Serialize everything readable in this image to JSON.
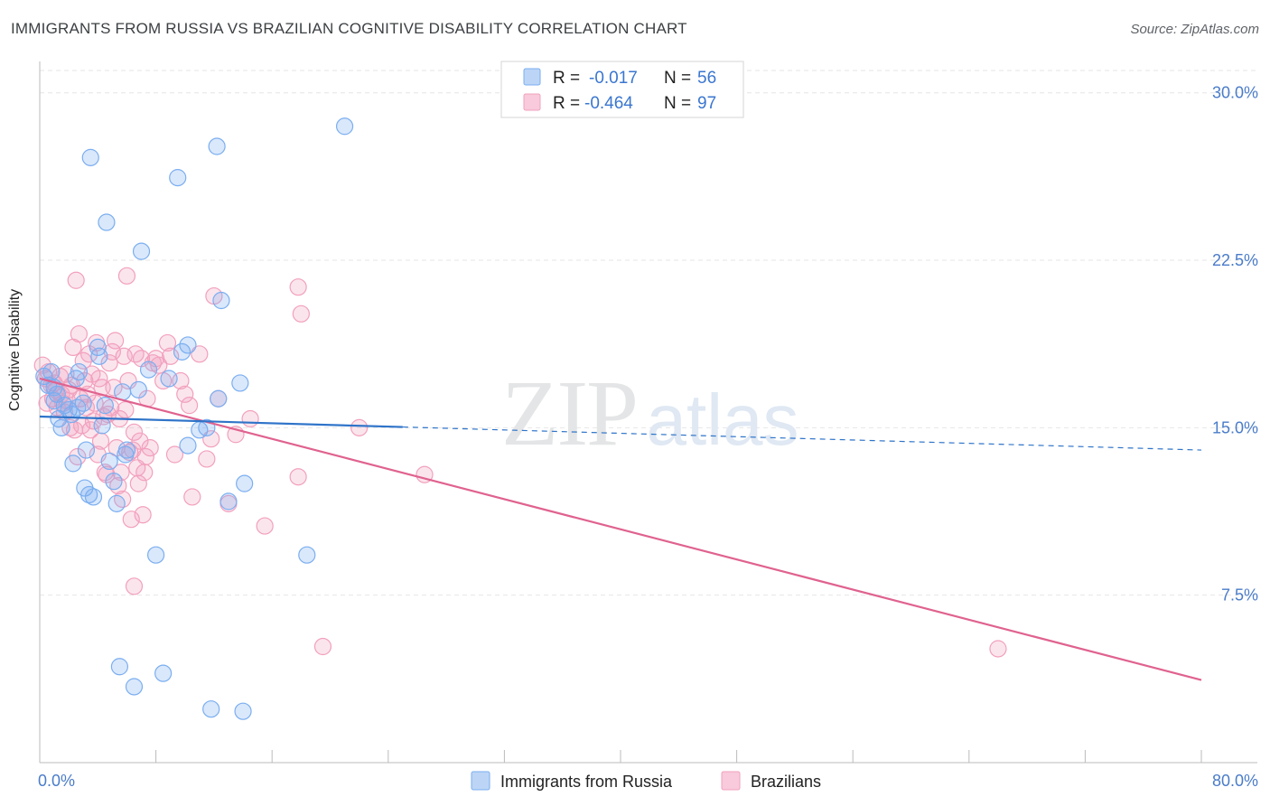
{
  "header": {
    "title": "IMMIGRANTS FROM RUSSIA VS BRAZILIAN COGNITIVE DISABILITY CORRELATION CHART",
    "source": "Source: ZipAtlas.com"
  },
  "watermark": {
    "zip": "ZIP",
    "atlas": "atlas"
  },
  "colors": {
    "russia": "#7aaef0",
    "russia_line": "#2f74c9",
    "brazil": "#f2a0bd",
    "brazil_line": "#e0628f",
    "tick_label": "#4a7cc9"
  },
  "chart_data": {
    "type": "scatter",
    "title": "IMMIGRANTS FROM RUSSIA VS BRAZILIAN COGNITIVE DISABILITY CORRELATION CHART",
    "xlabel": "",
    "ylabel": "Cognitive Disability",
    "xlim": [
      0,
      80
    ],
    "ylim": [
      0,
      31
    ],
    "x_tick_labels": [
      "0.0%",
      "80.0%"
    ],
    "y_ticks": [
      7.5,
      15.0,
      22.5,
      30.0
    ],
    "y_tick_labels": [
      "7.5%",
      "15.0%",
      "22.5%",
      "30.0%"
    ],
    "legend": [
      {
        "name": "Immigrants from Russia",
        "r_label": "R =",
        "r": "-0.017",
        "n_label": "N =",
        "n": "56"
      },
      {
        "name": "Brazilians",
        "r_label": "R =",
        "r": "-0.464",
        "n_label": "N =",
        "n": "97"
      }
    ],
    "series": [
      {
        "name": "Immigrants from Russia",
        "trend": {
          "x0": 0,
          "y0": 15.5,
          "x1": 80,
          "y1": 14.0,
          "solid_until_x": 25
        },
        "points": [
          [
            0.3,
            17.3
          ],
          [
            0.6,
            16.9
          ],
          [
            0.8,
            17.5
          ],
          [
            1.0,
            16.2
          ],
          [
            1.3,
            15.4
          ],
          [
            1.5,
            15.0
          ],
          [
            1.7,
            16.0
          ],
          [
            2.0,
            15.8
          ],
          [
            2.2,
            15.6
          ],
          [
            2.3,
            13.4
          ],
          [
            2.5,
            17.2
          ],
          [
            2.7,
            17.5
          ],
          [
            3.0,
            16.1
          ],
          [
            3.1,
            12.3
          ],
          [
            3.2,
            14.0
          ],
          [
            3.4,
            12.0
          ],
          [
            3.5,
            27.1
          ],
          [
            3.7,
            11.9
          ],
          [
            4.0,
            18.6
          ],
          [
            4.1,
            18.2
          ],
          [
            4.3,
            15.1
          ],
          [
            4.5,
            16.0
          ],
          [
            4.6,
            24.2
          ],
          [
            4.8,
            13.5
          ],
          [
            5.1,
            12.6
          ],
          [
            5.3,
            11.6
          ],
          [
            5.5,
            4.3
          ],
          [
            5.7,
            16.6
          ],
          [
            5.9,
            13.8
          ],
          [
            6.0,
            14.0
          ],
          [
            6.5,
            3.4
          ],
          [
            6.8,
            16.7
          ],
          [
            7.0,
            22.9
          ],
          [
            7.5,
            17.6
          ],
          [
            8.0,
            9.3
          ],
          [
            8.5,
            4.0
          ],
          [
            8.9,
            17.2
          ],
          [
            9.5,
            26.2
          ],
          [
            9.8,
            18.4
          ],
          [
            10.2,
            18.7
          ],
          [
            10.2,
            14.2
          ],
          [
            11.0,
            14.9
          ],
          [
            11.5,
            15.0
          ],
          [
            11.8,
            2.4
          ],
          [
            12.2,
            27.6
          ],
          [
            12.3,
            16.3
          ],
          [
            12.5,
            20.7
          ],
          [
            13.0,
            11.7
          ],
          [
            13.8,
            17.0
          ],
          [
            14.1,
            12.5
          ],
          [
            14.0,
            2.3
          ],
          [
            18.4,
            9.3
          ],
          [
            21.0,
            28.5
          ],
          [
            1.0,
            16.8
          ],
          [
            2.6,
            15.9
          ],
          [
            1.2,
            16.5
          ]
        ]
      },
      {
        "name": "Brazilians",
        "trend": {
          "x0": 0,
          "y0": 17.2,
          "x1": 80,
          "y1": 3.7
        },
        "points": [
          [
            0.2,
            17.8
          ],
          [
            0.4,
            17.2
          ],
          [
            0.5,
            16.1
          ],
          [
            0.6,
            17.5
          ],
          [
            0.8,
            16.9
          ],
          [
            0.9,
            16.3
          ],
          [
            1.0,
            17.0
          ],
          [
            1.1,
            16.7
          ],
          [
            1.2,
            15.9
          ],
          [
            1.4,
            17.3
          ],
          [
            1.5,
            16.5
          ],
          [
            1.6,
            16.1
          ],
          [
            1.7,
            15.7
          ],
          [
            1.8,
            17.4
          ],
          [
            1.9,
            16.2
          ],
          [
            2.0,
            16.7
          ],
          [
            2.1,
            15.0
          ],
          [
            2.2,
            16.9
          ],
          [
            2.3,
            18.6
          ],
          [
            2.4,
            14.9
          ],
          [
            2.5,
            21.6
          ],
          [
            2.6,
            13.7
          ],
          [
            2.7,
            19.2
          ],
          [
            2.8,
            16.3
          ],
          [
            2.9,
            15.1
          ],
          [
            3.0,
            18.0
          ],
          [
            3.1,
            17.1
          ],
          [
            3.2,
            15.9
          ],
          [
            3.3,
            16.5
          ],
          [
            3.4,
            18.3
          ],
          [
            3.5,
            14.9
          ],
          [
            3.6,
            17.4
          ],
          [
            3.7,
            15.3
          ],
          [
            3.8,
            16.1
          ],
          [
            3.9,
            18.8
          ],
          [
            4.0,
            13.8
          ],
          [
            4.1,
            17.2
          ],
          [
            4.2,
            14.4
          ],
          [
            4.3,
            16.8
          ],
          [
            4.4,
            15.5
          ],
          [
            4.5,
            13.0
          ],
          [
            4.6,
            12.9
          ],
          [
            4.7,
            15.6
          ],
          [
            4.8,
            17.9
          ],
          [
            4.9,
            15.9
          ],
          [
            5.0,
            18.4
          ],
          [
            5.1,
            16.8
          ],
          [
            5.2,
            18.9
          ],
          [
            5.3,
            14.1
          ],
          [
            5.4,
            12.4
          ],
          [
            5.5,
            15.4
          ],
          [
            5.6,
            13.0
          ],
          [
            5.7,
            11.8
          ],
          [
            5.8,
            18.2
          ],
          [
            5.9,
            15.8
          ],
          [
            6.0,
            21.8
          ],
          [
            6.1,
            17.1
          ],
          [
            6.2,
            13.9
          ],
          [
            6.3,
            10.9
          ],
          [
            6.4,
            14.0
          ],
          [
            6.5,
            14.8
          ],
          [
            6.6,
            18.3
          ],
          [
            6.7,
            13.2
          ],
          [
            6.8,
            12.5
          ],
          [
            6.9,
            14.4
          ],
          [
            7.0,
            18.1
          ],
          [
            7.1,
            11.1
          ],
          [
            7.2,
            13.0
          ],
          [
            7.3,
            13.7
          ],
          [
            7.4,
            16.3
          ],
          [
            7.6,
            14.1
          ],
          [
            7.8,
            17.9
          ],
          [
            8.0,
            18.1
          ],
          [
            8.2,
            17.8
          ],
          [
            8.5,
            17.1
          ],
          [
            8.8,
            18.8
          ],
          [
            9.0,
            18.2
          ],
          [
            9.3,
            13.8
          ],
          [
            9.7,
            17.1
          ],
          [
            10.0,
            16.5
          ],
          [
            10.3,
            16.0
          ],
          [
            10.5,
            11.9
          ],
          [
            11.0,
            18.3
          ],
          [
            11.5,
            13.6
          ],
          [
            11.8,
            14.5
          ],
          [
            12.0,
            20.9
          ],
          [
            12.3,
            16.3
          ],
          [
            13.0,
            11.6
          ],
          [
            13.5,
            14.7
          ],
          [
            14.5,
            15.4
          ],
          [
            15.5,
            10.6
          ],
          [
            17.8,
            12.8
          ],
          [
            17.8,
            21.3
          ],
          [
            18.0,
            20.1
          ],
          [
            22.0,
            15.0
          ],
          [
            6.5,
            7.9
          ],
          [
            19.5,
            5.2
          ]
        ],
        "outliers": [
          [
            26.5,
            12.9
          ],
          [
            66.0,
            5.1
          ]
        ]
      }
    ]
  }
}
